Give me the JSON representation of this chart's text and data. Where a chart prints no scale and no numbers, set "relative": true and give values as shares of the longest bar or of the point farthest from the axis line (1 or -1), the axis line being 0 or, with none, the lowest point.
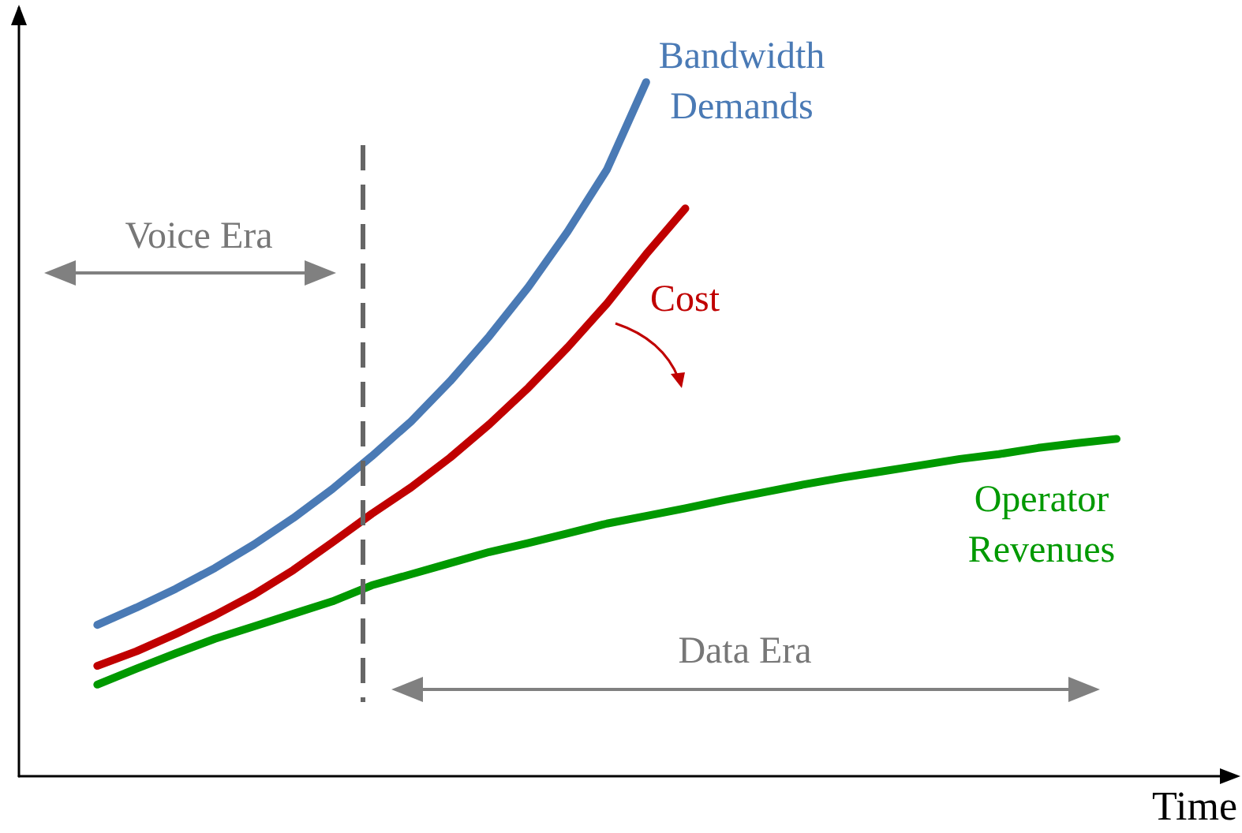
{
  "chart_data": {
    "type": "line",
    "relative": true,
    "xlabel": "Time",
    "marker": "none",
    "line_style": "solid",
    "categories": [
      null,
      null,
      null,
      null,
      null,
      null,
      null,
      null,
      null,
      null,
      null,
      null,
      null,
      null,
      null,
      null,
      null,
      null,
      null,
      null,
      null,
      null,
      null,
      null,
      null,
      null,
      null,
      null,
      null,
      null,
      null,
      null
    ],
    "annotations": [
      "Voice Era",
      "Data Era"
    ],
    "series": [
      {
        "name": "Bandwidth Demands",
        "color": "#4a7ab5",
        "values": [
          null,
          null,
          0.218,
          0.243,
          0.27,
          0.3,
          0.334,
          0.372,
          0.414,
          0.461,
          0.511,
          0.569,
          0.634,
          0.705,
          0.785,
          0.874,
          1.0,
          null,
          null,
          null,
          null,
          null,
          null,
          null,
          null,
          null,
          null,
          null,
          null,
          null,
          null,
          null
        ]
      },
      {
        "name": "Cost",
        "color": "#c00000",
        "values": [
          null,
          null,
          0.159,
          0.18,
          0.205,
          0.232,
          0.262,
          0.297,
          0.337,
          0.378,
          0.416,
          0.459,
          0.507,
          0.56,
          0.618,
          0.681,
          0.752,
          0.818,
          null,
          null,
          null,
          null,
          null,
          null,
          null,
          null,
          null,
          null,
          null,
          null,
          null,
          null
        ]
      },
      {
        "name": "Operator Revenues",
        "color": "#009900",
        "values": [
          null,
          null,
          0.132,
          0.155,
          0.177,
          0.198,
          0.216,
          0.234,
          0.252,
          0.275,
          0.291,
          0.307,
          0.323,
          0.336,
          0.35,
          0.364,
          0.375,
          0.386,
          0.398,
          0.409,
          0.42,
          0.43,
          0.439,
          0.448,
          0.457,
          0.464,
          0.473,
          0.48,
          0.486,
          null,
          null,
          null
        ]
      }
    ]
  }
}
